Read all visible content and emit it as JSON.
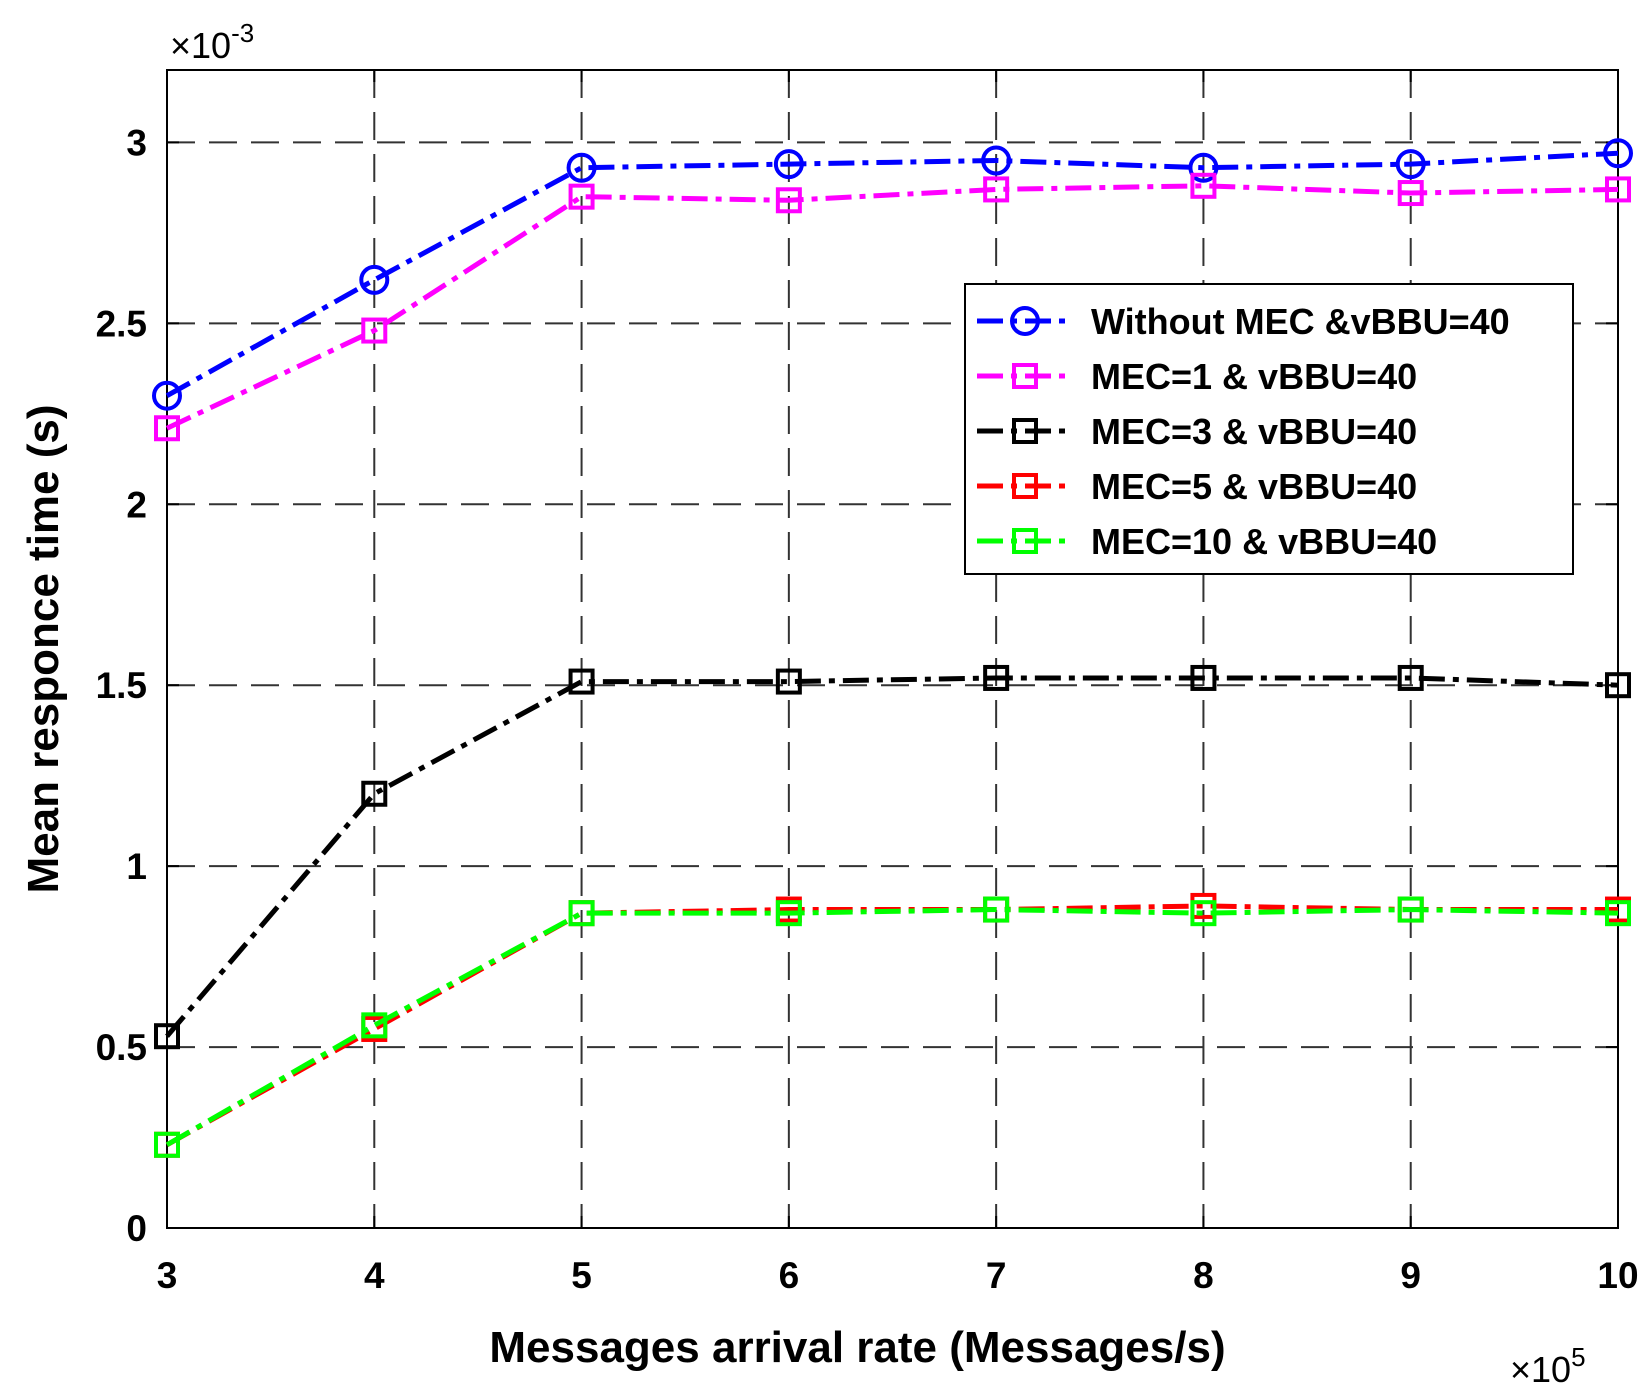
{
  "chart_data": {
    "type": "line",
    "xlabel": "Messages arrival rate (Messages/s)",
    "ylabel": "Mean responce time (s)",
    "x": [
      3,
      4,
      5,
      6,
      7,
      8,
      9,
      10
    ],
    "xlim": [
      3,
      10
    ],
    "ylim": [
      0,
      3.2
    ],
    "x_ticks": [
      3,
      4,
      5,
      6,
      7,
      8,
      9,
      10
    ],
    "y_ticks": [
      0,
      0.5,
      1,
      1.5,
      2,
      2.5,
      3
    ],
    "x_tick_labels": [
      "3",
      "4",
      "5",
      "6",
      "7",
      "8",
      "9",
      "10"
    ],
    "y_tick_labels": [
      "0",
      "0.5",
      "1",
      "1.5",
      "2",
      "2.5",
      "3"
    ],
    "x_multiplier": {
      "base": "×10",
      "exp": "5"
    },
    "y_multiplier": {
      "base": "×10",
      "exp": "-3"
    },
    "grid": true,
    "legend_position": "upper-right",
    "series": [
      {
        "name": "Without MEC &vBBU=40",
        "color": "#0000ff",
        "marker": "circle",
        "values": [
          2.3,
          2.62,
          2.93,
          2.94,
          2.95,
          2.93,
          2.94,
          2.97
        ]
      },
      {
        "name": "MEC=1 & vBBU=40",
        "color": "#ff00ff",
        "marker": "square",
        "values": [
          2.21,
          2.48,
          2.85,
          2.84,
          2.87,
          2.88,
          2.86,
          2.87
        ]
      },
      {
        "name": "MEC=3 & vBBU=40",
        "color": "#000000",
        "marker": "square",
        "values": [
          0.53,
          1.2,
          1.51,
          1.51,
          1.52,
          1.52,
          1.52,
          1.5
        ]
      },
      {
        "name": "MEC=5 & vBBU=40",
        "color": "#ff0000",
        "marker": "square",
        "values": [
          0.23,
          0.55,
          0.87,
          0.88,
          0.88,
          0.89,
          0.88,
          0.88
        ]
      },
      {
        "name": "MEC=10 & vBBU=40",
        "color": "#00ff00",
        "marker": "square",
        "values": [
          0.23,
          0.56,
          0.87,
          0.87,
          0.88,
          0.87,
          0.88,
          0.87
        ]
      }
    ]
  }
}
